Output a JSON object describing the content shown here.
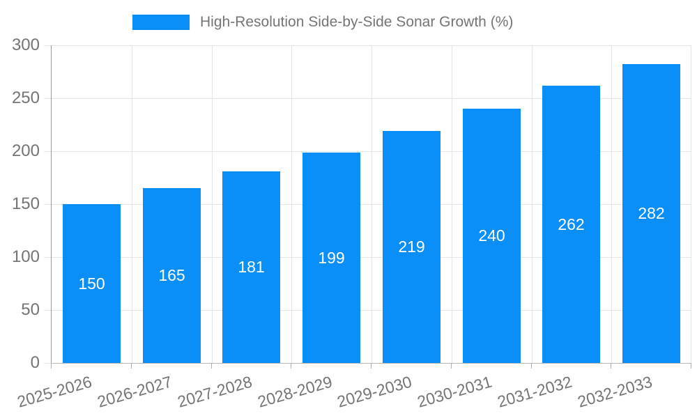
{
  "chart_data": {
    "type": "bar",
    "title": "High-Resolution Side-by-Side Sonar Growth (%)",
    "categories": [
      "2025-2026",
      "2026-2027",
      "2027-2028",
      "2028-2029",
      "2029-2030",
      "2030-2031",
      "2031-2032",
      "2032-2033"
    ],
    "values": [
      150,
      165,
      181,
      199,
      219,
      240,
      262,
      282
    ],
    "xlabel": "",
    "ylabel": "",
    "ylim": [
      0,
      300
    ],
    "yticks": [
      0,
      50,
      100,
      150,
      200,
      250,
      300
    ],
    "grid": true,
    "legend_position": "top",
    "value_labels": "centered-inside-bars",
    "colors": {
      "bar": "#0a8ff9",
      "value_label": "#ffffff",
      "text": "#757575",
      "gridline": "#e6e6e6",
      "y_axis_line": "#9a9a9a",
      "x_baseline": "#b8b8b8",
      "tick": "#b0b0b0",
      "background": "#ffffff"
    }
  }
}
